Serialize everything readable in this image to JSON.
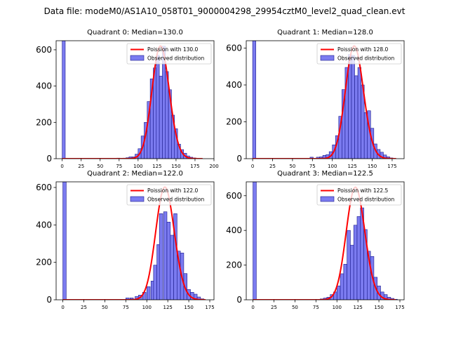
{
  "figure": {
    "suptitle": "Data file: modeM0/AS1A10_058T01_9000004298_29954cztM0_level2_quad_clean.evt"
  },
  "colors": {
    "hist_fill": "#7b7bf0",
    "hist_edge": "#1a1a8c",
    "poisson_line": "#ff0000"
  },
  "chart_data": [
    {
      "type": "bar",
      "title": "Quadrant 0: Median=130.0",
      "median": 130.0,
      "xlim": [
        -8,
        200
      ],
      "ylim": [
        0,
        650
      ],
      "xticks": [
        0,
        25,
        50,
        75,
        100,
        125,
        150,
        175,
        200
      ],
      "yticks": [
        0,
        200,
        400,
        600
      ],
      "bin_width": 4,
      "legend": {
        "line": "Poission with 130.0",
        "bar": "Observed distribution",
        "placement": "top-right"
      },
      "bins": [
        [
          0,
          650
        ],
        [
          72,
          3
        ],
        [
          80,
          3
        ],
        [
          84,
          5
        ],
        [
          88,
          10
        ],
        [
          92,
          10
        ],
        [
          96,
          25
        ],
        [
          100,
          55
        ],
        [
          104,
          125
        ],
        [
          108,
          200
        ],
        [
          112,
          315
        ],
        [
          116,
          440
        ],
        [
          120,
          500
        ],
        [
          124,
          570
        ],
        [
          128,
          455
        ],
        [
          132,
          620
        ],
        [
          136,
          480
        ],
        [
          140,
          380
        ],
        [
          144,
          240
        ],
        [
          148,
          165
        ],
        [
          152,
          80
        ],
        [
          156,
          50
        ],
        [
          160,
          30
        ],
        [
          164,
          15
        ],
        [
          168,
          8
        ],
        [
          172,
          4
        ]
      ],
      "poisson_lambda": 130.0,
      "poisson_x_range": [
        0,
        185
      ]
    },
    {
      "type": "bar",
      "title": "Quadrant 1: Median=128.0",
      "median": 128.0,
      "xlim": [
        -8,
        190
      ],
      "ylim": [
        0,
        640
      ],
      "xticks": [
        0,
        25,
        50,
        75,
        100,
        125,
        150,
        175
      ],
      "yticks": [
        0,
        200,
        400,
        600
      ],
      "bin_width": 4,
      "legend": {
        "line": "Poission with 128.0",
        "bar": "Observed distribution",
        "placement": "top-right"
      },
      "bins": [
        [
          0,
          640
        ],
        [
          72,
          8
        ],
        [
          80,
          8
        ],
        [
          84,
          10
        ],
        [
          88,
          18
        ],
        [
          92,
          22
        ],
        [
          96,
          38
        ],
        [
          100,
          75
        ],
        [
          104,
          125
        ],
        [
          108,
          230
        ],
        [
          112,
          375
        ],
        [
          116,
          495
        ],
        [
          120,
          565
        ],
        [
          124,
          560
        ],
        [
          128,
          450
        ],
        [
          132,
          495
        ],
        [
          136,
          400
        ],
        [
          140,
          250
        ],
        [
          144,
          260
        ],
        [
          148,
          165
        ],
        [
          152,
          80
        ],
        [
          156,
          50
        ],
        [
          160,
          35
        ],
        [
          164,
          20
        ],
        [
          168,
          10
        ],
        [
          172,
          4
        ]
      ],
      "poisson_lambda": 128.0,
      "poisson_x_range": [
        0,
        180
      ]
    },
    {
      "type": "bar",
      "title": "Quadrant 2: Median=122.0",
      "median": 122.0,
      "xlim": [
        -8,
        180
      ],
      "ylim": [
        0,
        630
      ],
      "xticks": [
        0,
        25,
        50,
        75,
        100,
        125,
        150,
        175
      ],
      "yticks": [
        0,
        200,
        400,
        600
      ],
      "bin_width": 4,
      "legend": {
        "line": "Poission with 122.0",
        "bar": "Observed distribution",
        "placement": "top-right"
      },
      "bins": [
        [
          0,
          630
        ],
        [
          75,
          10
        ],
        [
          80,
          10
        ],
        [
          86,
          18
        ],
        [
          90,
          25
        ],
        [
          95,
          40
        ],
        [
          100,
          70
        ],
        [
          105,
          100
        ],
        [
          108,
          185
        ],
        [
          112,
          295
        ],
        [
          115,
          460
        ],
        [
          120,
          470
        ],
        [
          124,
          415
        ],
        [
          128,
          345
        ],
        [
          132,
          460
        ],
        [
          136,
          260
        ],
        [
          140,
          250
        ],
        [
          144,
          140
        ],
        [
          148,
          55
        ],
        [
          152,
          40
        ],
        [
          156,
          30
        ],
        [
          160,
          15
        ],
        [
          164,
          5
        ]
      ],
      "poisson_lambda": 122.0,
      "poisson_x_range": [
        0,
        170
      ]
    },
    {
      "type": "bar",
      "title": "Quadrant 3: Median=122.5",
      "median": 122.5,
      "xlim": [
        -8,
        180
      ],
      "ylim": [
        0,
        680
      ],
      "xticks": [
        0,
        25,
        50,
        75,
        100,
        125,
        150,
        175
      ],
      "yticks": [
        0,
        200,
        400,
        600
      ],
      "bin_width": 4,
      "legend": {
        "line": "Poission with 122.5",
        "bar": "Observed distribution",
        "placement": "top-right"
      },
      "bins": [
        [
          0,
          680
        ],
        [
          80,
          5
        ],
        [
          84,
          10
        ],
        [
          88,
          15
        ],
        [
          92,
          30
        ],
        [
          96,
          45
        ],
        [
          100,
          80
        ],
        [
          104,
          150
        ],
        [
          108,
          205
        ],
        [
          112,
          400
        ],
        [
          116,
          315
        ],
        [
          120,
          430
        ],
        [
          124,
          480
        ],
        [
          128,
          530
        ],
        [
          132,
          405
        ],
        [
          136,
          280
        ],
        [
          140,
          250
        ],
        [
          144,
          130
        ],
        [
          148,
          80
        ],
        [
          152,
          45
        ],
        [
          156,
          30
        ],
        [
          160,
          15
        ],
        [
          164,
          8
        ],
        [
          168,
          3
        ]
      ],
      "poisson_lambda": 122.5,
      "poisson_x_range": [
        0,
        170
      ]
    }
  ]
}
